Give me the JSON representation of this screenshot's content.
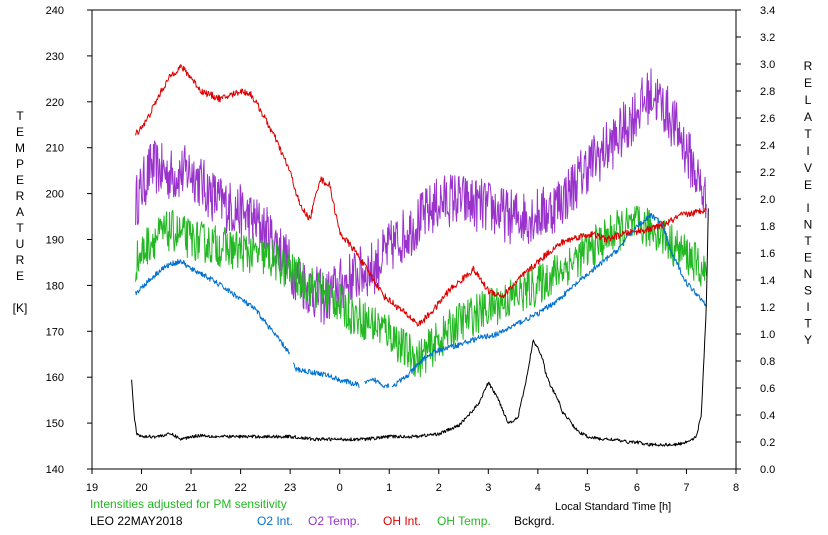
{
  "chart_data": {
    "type": "line",
    "title": "",
    "x_axis": {
      "label": "Local Standard Time [h]",
      "ticks": [
        "19",
        "20",
        "21",
        "22",
        "23",
        "0",
        "1",
        "2",
        "3",
        "4",
        "5",
        "6",
        "7",
        "8"
      ]
    },
    "y_left": {
      "label_letters": [
        "T",
        "E",
        "M",
        "P",
        "E",
        "R",
        "A",
        "T",
        "U",
        "R",
        "E"
      ],
      "unit": "[K]",
      "ylim": [
        140,
        240
      ],
      "ticks": [
        "140",
        "150",
        "160",
        "170",
        "180",
        "190",
        "200",
        "210",
        "220",
        "230",
        "240"
      ]
    },
    "y_right": {
      "label_word1": [
        "R",
        "E",
        "L",
        "A",
        "T",
        "I",
        "V",
        "E"
      ],
      "label_word2": [
        "I",
        "N",
        "T",
        "E",
        "N",
        "S",
        "I",
        "T",
        "Y"
      ],
      "ylim": [
        0.0,
        3.4
      ],
      "ticks": [
        "0.0",
        "0.2",
        "0.4",
        "0.6",
        "0.8",
        "1.0",
        "1.2",
        "1.4",
        "1.6",
        "1.8",
        "2.0",
        "2.2",
        "2.4",
        "2.6",
        "2.8",
        "3.0",
        "3.2",
        "3.4"
      ]
    },
    "xlim": [
      19,
      32
    ],
    "note": "Intensities adjusted for PM sensitivity",
    "station": "LEO 22MAY2018",
    "legend": [
      {
        "name": "O2 Int.",
        "color": "#0070d0"
      },
      {
        "name": "O2 Temp.",
        "color": "#9933cc"
      },
      {
        "name": "OH Int.",
        "color": "#dd0000"
      },
      {
        "name": "OH Temp.",
        "color": "#22b822"
      },
      {
        "name": "Bckgrd.",
        "color": "#000000"
      }
    ],
    "series": [
      {
        "name": "O2 Temp.",
        "axis": "left",
        "color": "#9933cc",
        "noise": 6,
        "x": [
          19.88,
          20.2,
          20.6,
          21.0,
          21.3,
          21.6,
          22.0,
          22.4,
          22.8,
          23.0,
          23.3,
          23.7,
          24.0,
          24.3,
          24.7,
          25.0,
          25.3,
          25.7,
          26.0,
          26.3,
          26.6,
          27.0,
          27.4,
          27.8,
          28.2,
          28.6,
          29.0,
          29.3,
          29.6,
          30.0,
          30.3,
          30.6,
          30.9,
          31.2,
          31.4
        ],
        "y": [
          198,
          206,
          204,
          205,
          201,
          198,
          196,
          193,
          188,
          184,
          180,
          177,
          180,
          182,
          184,
          188,
          191,
          195,
          198,
          199,
          198,
          197,
          195,
          195,
          196,
          200,
          206,
          209,
          212,
          218,
          222,
          218,
          212,
          204,
          198
        ]
      },
      {
        "name": "OH Temp.",
        "axis": "left",
        "color": "#22b822",
        "noise": 4.5,
        "x": [
          19.88,
          20.2,
          20.6,
          21.0,
          21.4,
          21.8,
          22.2,
          22.6,
          23.0,
          23.4,
          23.8,
          24.2,
          24.6,
          25.0,
          25.3,
          25.6,
          26.0,
          26.4,
          26.8,
          27.2,
          27.6,
          28.0,
          28.4,
          28.8,
          29.2,
          29.6,
          30.0,
          30.4,
          30.8,
          31.1,
          31.4
        ],
        "y": [
          185,
          190,
          192,
          190,
          189,
          188,
          187,
          186,
          183,
          180,
          178,
          174,
          172,
          170,
          166,
          164,
          168,
          172,
          174,
          176,
          178,
          180,
          183,
          186,
          189,
          192,
          193,
          192,
          188,
          186,
          182
        ]
      },
      {
        "name": "OH Int.",
        "axis": "right",
        "color": "#dd0000",
        "noise": 0.025,
        "x": [
          19.88,
          20.1,
          20.4,
          20.6,
          20.8,
          21.0,
          21.2,
          21.6,
          22.0,
          22.2,
          22.4,
          22.7,
          23.0,
          23.2,
          23.4,
          23.6,
          23.8,
          24.0,
          24.3,
          24.6,
          24.9,
          25.1,
          25.3,
          25.6,
          25.9,
          26.2,
          26.4,
          26.7,
          27.0,
          27.3,
          27.6,
          27.9,
          28.2,
          28.5,
          28.8,
          29.1,
          29.4,
          29.7,
          30.0,
          30.3,
          30.6,
          30.9,
          31.2,
          31.4
        ],
        "y": [
          2.48,
          2.58,
          2.8,
          2.92,
          2.98,
          2.9,
          2.8,
          2.74,
          2.8,
          2.78,
          2.66,
          2.45,
          2.2,
          1.95,
          1.85,
          2.15,
          2.1,
          1.75,
          1.62,
          1.45,
          1.28,
          1.22,
          1.16,
          1.07,
          1.18,
          1.32,
          1.38,
          1.48,
          1.32,
          1.28,
          1.4,
          1.5,
          1.6,
          1.68,
          1.72,
          1.74,
          1.7,
          1.74,
          1.76,
          1.78,
          1.82,
          1.88,
          1.9,
          1.93
        ]
      },
      {
        "name": "O2 Int.",
        "axis": "right",
        "color": "#0070d0",
        "noise": 0.02,
        "gaps": [
          [
            23.0,
            23.05
          ],
          [
            24.4,
            24.5
          ],
          [
            25.0,
            25.05
          ]
        ],
        "x": [
          19.88,
          20.1,
          20.4,
          20.6,
          20.8,
          21.0,
          21.2,
          21.6,
          22.0,
          22.3,
          22.6,
          22.9,
          23.0,
          23.1,
          23.4,
          23.7,
          24.0,
          24.4,
          24.7,
          24.9,
          25.1,
          25.4,
          25.7,
          26.0,
          26.4,
          26.8,
          27.2,
          27.6,
          28.0,
          28.4,
          28.8,
          29.2,
          29.6,
          30.0,
          30.3,
          30.5,
          30.7,
          31.0,
          31.2,
          31.4
        ],
        "y": [
          1.3,
          1.38,
          1.48,
          1.52,
          1.54,
          1.48,
          1.45,
          1.36,
          1.26,
          1.18,
          1.04,
          0.9,
          0.85,
          0.74,
          0.72,
          0.7,
          0.66,
          0.62,
          0.66,
          0.62,
          0.62,
          0.7,
          0.82,
          0.88,
          0.92,
          0.97,
          1.0,
          1.08,
          1.15,
          1.25,
          1.38,
          1.5,
          1.62,
          1.8,
          1.88,
          1.82,
          1.6,
          1.38,
          1.3,
          1.22
        ]
      },
      {
        "name": "Bckgrd.",
        "axis": "right",
        "color": "#000000",
        "noise": 0.012,
        "x": [
          19.8,
          19.85,
          19.9,
          20.0,
          20.3,
          20.6,
          20.8,
          21.0,
          21.2,
          21.5,
          22.0,
          22.5,
          23.0,
          23.5,
          24.0,
          24.5,
          25.0,
          25.5,
          26.0,
          26.4,
          26.8,
          27.0,
          27.2,
          27.4,
          27.6,
          27.7,
          27.8,
          27.9,
          28.0,
          28.1,
          28.15,
          28.25,
          28.4,
          28.5,
          28.6,
          28.8,
          29.0,
          29.3,
          29.5,
          29.8,
          30.0,
          30.2,
          30.5,
          30.8,
          31.0,
          31.2,
          31.3,
          31.4,
          31.45
        ],
        "y": [
          0.67,
          0.4,
          0.26,
          0.24,
          0.24,
          0.26,
          0.22,
          0.24,
          0.25,
          0.24,
          0.24,
          0.24,
          0.24,
          0.22,
          0.22,
          0.22,
          0.24,
          0.24,
          0.26,
          0.32,
          0.48,
          0.64,
          0.52,
          0.34,
          0.38,
          0.55,
          0.72,
          0.95,
          0.9,
          0.82,
          0.72,
          0.62,
          0.52,
          0.42,
          0.38,
          0.28,
          0.24,
          0.22,
          0.22,
          0.2,
          0.2,
          0.18,
          0.18,
          0.18,
          0.2,
          0.24,
          0.4,
          1.2,
          2.1
        ]
      }
    ]
  }
}
